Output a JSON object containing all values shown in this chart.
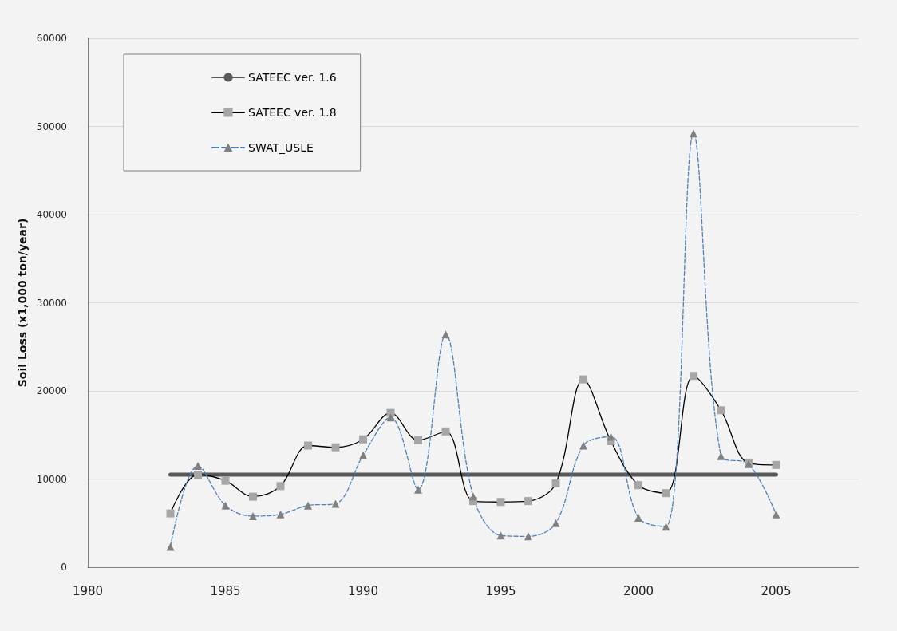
{
  "chart_data": {
    "type": "line",
    "ylabel": "Soil Loss (x1,000 ton/year)",
    "x": [
      1983,
      1984,
      1985,
      1986,
      1987,
      1988,
      1989,
      1990,
      1991,
      1992,
      1993,
      1994,
      1995,
      1996,
      1997,
      1998,
      1999,
      2000,
      2001,
      2002,
      2003,
      2004,
      2005
    ],
    "series": [
      {
        "name": "SATEEC ver. 1.6",
        "color": "#595959",
        "marker": "none",
        "line_style": "solid",
        "x": [
          1983,
          2005
        ],
        "values": [
          10500,
          10500
        ]
      },
      {
        "name": "SATEEC ver. 1.8",
        "color": "#000000",
        "marker": "square",
        "line_style": "solid",
        "values": [
          6100,
          10500,
          9800,
          8000,
          9200,
          13800,
          13600,
          14500,
          17500,
          14400,
          15400,
          7500,
          7400,
          7500,
          9500,
          21300,
          14300,
          9300,
          8400,
          21700,
          17800,
          11800,
          11600
        ]
      },
      {
        "name": "SWAT_USLE",
        "color": "#4f81bd",
        "marker": "triangle",
        "line_style": "dashed",
        "values": [
          2300,
          11500,
          7000,
          5800,
          6000,
          7000,
          7200,
          12700,
          17000,
          8800,
          26400,
          8000,
          3600,
          3500,
          5000,
          13800,
          14800,
          5600,
          4600,
          49200,
          12600,
          11700,
          6000
        ]
      }
    ],
    "xlim": [
      1980,
      2008
    ],
    "xticks": [
      1980,
      1985,
      1990,
      1995,
      2000,
      2005
    ],
    "ylim": [
      0,
      60000
    ],
    "yticks": [
      0,
      10000,
      20000,
      30000,
      40000,
      50000,
      60000
    ],
    "grid": "y",
    "legend": "top left"
  }
}
